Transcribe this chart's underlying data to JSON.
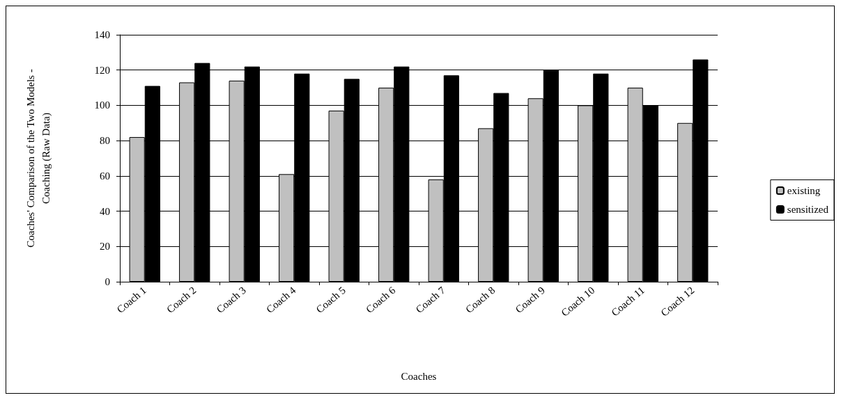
{
  "chart_data": {
    "type": "bar",
    "xlabel": "Coaches",
    "ylabel": "Coaches' Comparison of the Two Models -\nCoaching (Raw Data)",
    "categories": [
      "Coach 1",
      "Coach 2",
      "Coach 3",
      "Coach 4",
      "Coach 5",
      "Coach 6",
      "Coach 7",
      "Coach 8",
      "Coach 9",
      "Coach 10",
      "Coach 11",
      "Coach 12"
    ],
    "series": [
      {
        "name": "existing",
        "color": "#c0c0c0",
        "values": [
          82,
          113,
          114,
          61,
          97,
          110,
          58,
          87,
          104,
          100,
          110,
          90
        ]
      },
      {
        "name": "sensitized",
        "color": "#000000",
        "values": [
          111,
          124,
          122,
          118,
          115,
          122,
          117,
          107,
          120,
          118,
          100,
          126
        ]
      }
    ],
    "ylim": [
      0,
      140
    ],
    "yticks": [
      0,
      20,
      40,
      60,
      80,
      100,
      120,
      140
    ],
    "grid": "y",
    "legend": "right"
  }
}
